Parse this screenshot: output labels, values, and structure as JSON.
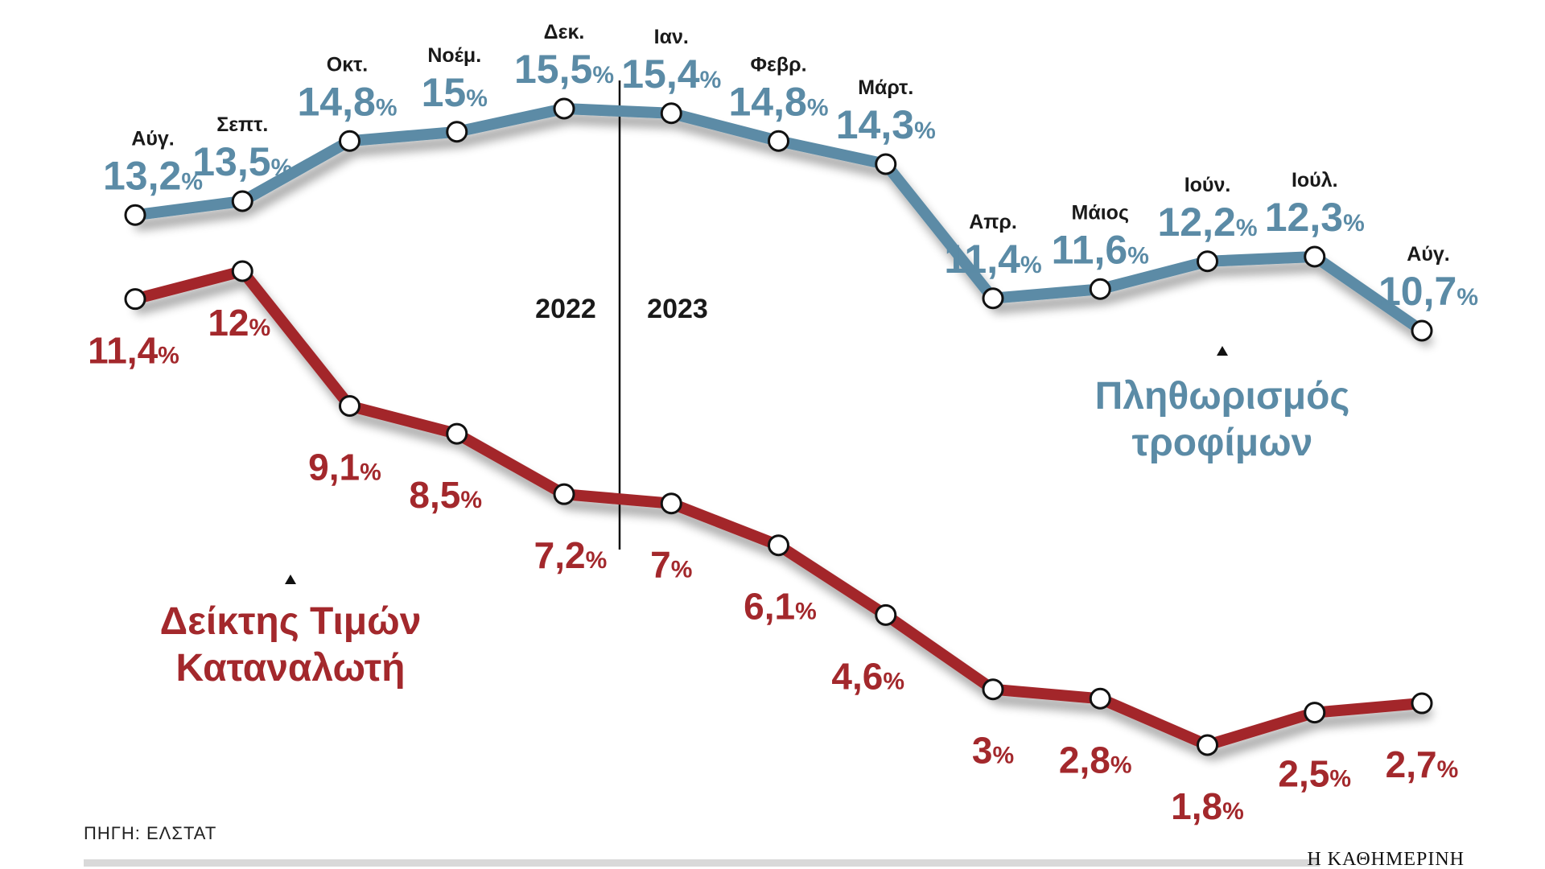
{
  "chart_data": {
    "type": "line",
    "categories": [
      "Αύγ.",
      "Σεπτ.",
      "Οκτ.",
      "Νοέμ.",
      "Δεκ.",
      "Ιαν.",
      "Φεβρ.",
      "Μάρτ.",
      "Απρ.",
      "Μάιος",
      "Ιούν.",
      "Ιούλ.",
      "Αύγ."
    ],
    "series": [
      {
        "name": "Πληθωρισμός τροφίμων",
        "title_lines": [
          "Πληθωρισμός",
          "τροφίμων"
        ],
        "color": "#5b8ba6",
        "values": [
          13.2,
          13.5,
          14.8,
          15,
          15.5,
          15.4,
          14.8,
          14.3,
          11.4,
          11.6,
          12.2,
          12.3,
          10.7
        ],
        "labels": [
          "13,2",
          "13,5",
          "14,8",
          "15",
          "15,5",
          "15,4",
          "14,8",
          "14,3",
          "11,4",
          "11,6",
          "12,2",
          "12,3",
          "10,7"
        ]
      },
      {
        "name": "Δείκτης Τιμών Καταναλωτή",
        "title_lines": [
          "Δείκτης Τιμών",
          "Καταναλωτή"
        ],
        "color": "#a3282c",
        "values": [
          11.4,
          12,
          9.1,
          8.5,
          7.2,
          7,
          6.1,
          4.6,
          3,
          2.8,
          1.8,
          2.5,
          2.7
        ],
        "labels": [
          "11,4",
          "12",
          "9,1",
          "8,5",
          "7,2",
          "7",
          "6,1",
          "4,6",
          "3",
          "2,8",
          "1,8",
          "2,5",
          "2,7"
        ]
      }
    ],
    "unit_symbol": "%",
    "years": [
      "2022",
      "2023"
    ],
    "title": "",
    "xlabel": "",
    "ylabel": ""
  },
  "source": "ΠΗΓΗ: ΕΛΣΤΑΤ",
  "credit": "Η ΚΑΘΗΜΕΡΙΝΗ"
}
